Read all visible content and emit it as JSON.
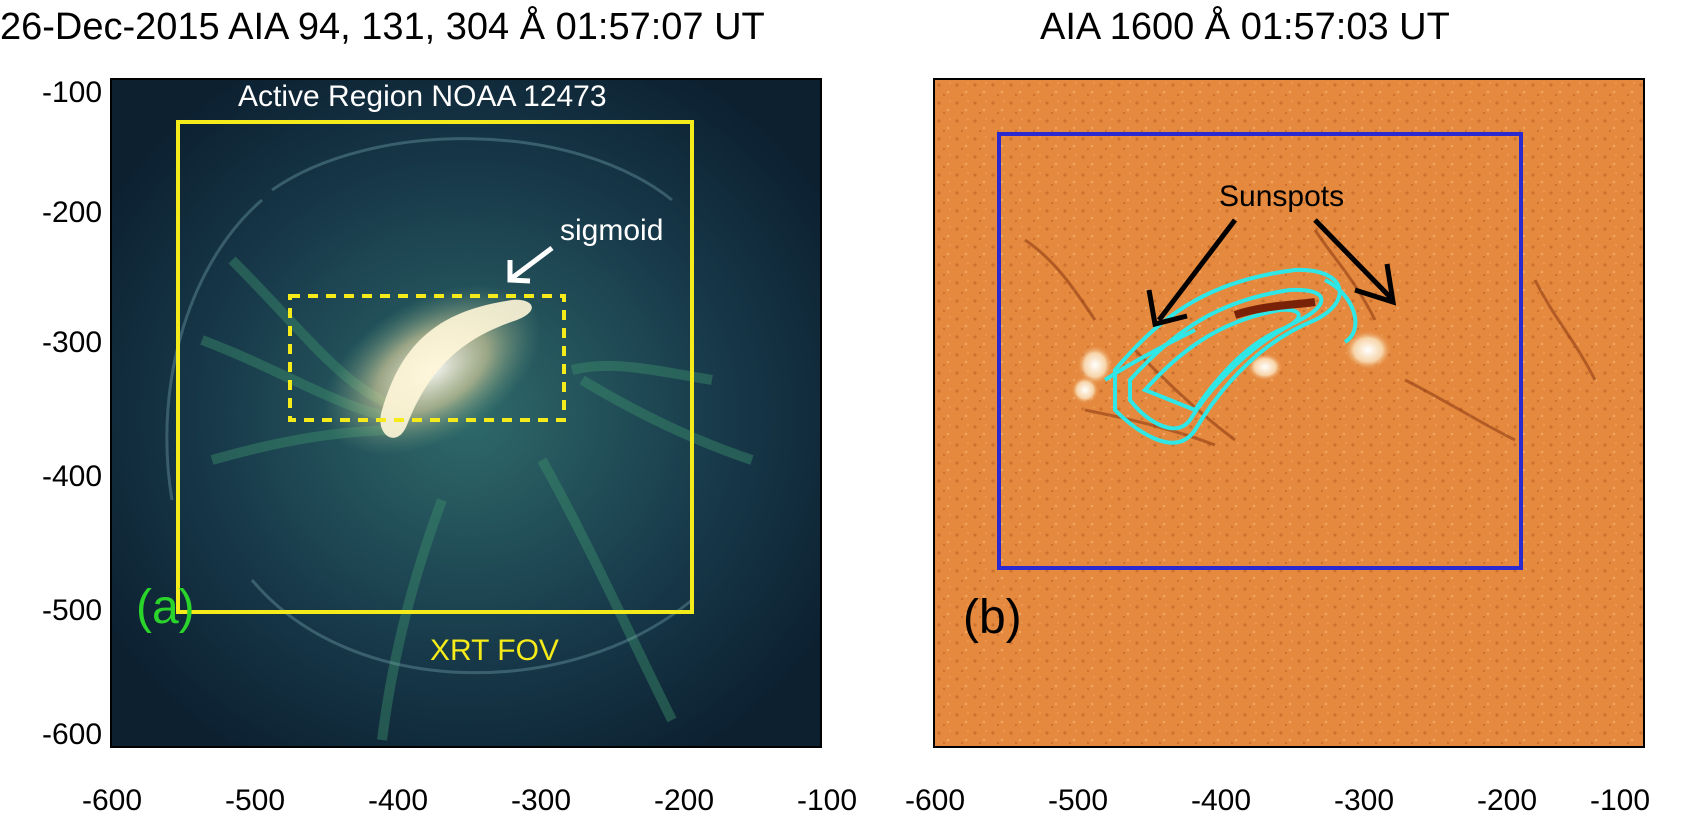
{
  "figure": {
    "left_title": "26-Dec-2015 AIA 94, 131, 304 Å 01:57:07 UT",
    "right_title": "AIA 1600 Å 01:57:03 UT"
  },
  "panel_a": {
    "label": "(a)",
    "region_label": "Active Region NOAA 12473",
    "sigmoid_label": "sigmoid",
    "fov_label": "XRT FOV",
    "colors": {
      "fov_box": "#f5ea1a",
      "label": "#2bd42b",
      "text": "#ffffff"
    },
    "y_ticks": [
      "-100",
      "-200",
      "-300",
      "-400",
      "-500",
      "-600"
    ],
    "x_ticks": [
      "-600",
      "-500",
      "-400",
      "-300",
      "-200",
      "-100"
    ]
  },
  "panel_b": {
    "label": "(b)",
    "sunspots_label": "Sunspots",
    "colors": {
      "box": "#2a2ad0",
      "contour": "#2fe7e7",
      "background": "#e5893e"
    },
    "x_ticks": [
      "-600",
      "-500",
      "-400",
      "-300",
      "-200",
      "-100"
    ]
  }
}
